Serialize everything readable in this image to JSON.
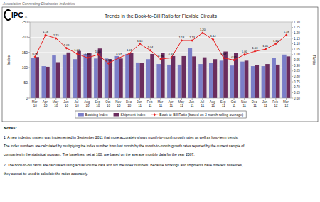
{
  "chart_data": {
    "type": "bar",
    "title": "Trends in the Book-to-Bill Ratio for Flexible Circuits",
    "ylabel": "Index",
    "y2label": "Ratio",
    "annotations": [
      "Association Connecting Electronics Industries",
      "IPC",
      "®",
      "Notes:",
      "1.  A new indexing system was implemented in September 2011 that more accurately shows month-to-month growth rates as well as long-term trends.",
      "The index numbers are calculated by multiplying the index number from last month by the month-to-month growth rates reported by the current sample of",
      "companies in the statistical program.  The baselines, set at 100, are based on the average monthly data for the year 2007.",
      "2.  The book-to-bill ratios are calculated using actual volume data and not the index numbers.  Because bookings and shipments have different baselines,",
      "they cannot be used to calculate the ratios accurately."
    ],
    "categories": [
      "Mar-\n10",
      "Apr-\n10",
      "May-\n10",
      "Jun-\n10",
      "Jul-\n10",
      "Aug-\n10",
      "Sep-\n10",
      "Oct-\n10",
      "Nov-\n10",
      "Dec-\n10",
      "Jan-\n11",
      "Feb-\n11",
      "Mar-\n11",
      "Apr-\n11",
      "May-\n11",
      "Jun-\n11",
      "Jul-\n11",
      "Aug-\n11",
      "Sep-\n11",
      "Oct-\n11",
      "Nov-\n11",
      "Dec-\n11",
      "Jan-\n12",
      "Feb-\n12",
      "Mar-\n12"
    ],
    "series": [
      {
        "name": "Booking Index",
        "color": "#7B7EC8",
        "values": [
          133,
          105,
          140,
          143,
          128,
          145,
          130,
          130,
          138,
          145,
          117,
          128,
          112,
          110,
          110,
          165,
          112,
          115,
          123,
          107,
          120,
          105,
          105,
          133,
          143
        ]
      },
      {
        "name": "Shipment Index",
        "color": "#6B2D5E",
        "values": [
          135,
          103,
          118,
          150,
          155,
          147,
          163,
          128,
          130,
          148,
          115,
          145,
          148,
          138,
          138,
          137,
          134,
          128,
          153,
          148,
          123,
          108,
          112,
          110,
          137
        ]
      },
      {
        "name": "Book-to-Bill Ratio (based on 3-month rolling average)",
        "type": "line",
        "axis": "y2",
        "color": "#E82020",
        "marker": "diamond",
        "data_labels": true,
        "values": [
          0.98,
          1.18,
          1.15,
          1.06,
          1.01,
          0.97,
          1.0,
          0.92,
          0.97,
          1.01,
          1.1,
          1.04,
          0.96,
          0.97,
          1.13,
          1.13,
          1.2,
          1.14,
          0.97,
          0.95,
          1.0,
          1.03,
          1.05,
          1.1,
          1.18
        ],
        "value_labels": [
          "0.98",
          "1.18",
          "1.15",
          "1.06",
          "1.01",
          "0.97",
          "1.00",
          "0.92",
          "0.97",
          "1.01",
          "1.10",
          "1.04",
          "0.96",
          "0.97",
          "1.13",
          "1.13",
          "1.20",
          "1.14",
          "0.97",
          "0.95",
          "1.00",
          "1.03",
          "1.05",
          "1.10",
          "1.18"
        ]
      }
    ],
    "ylim": [
      0,
      250
    ],
    "yticks": [
      0,
      50,
      100,
      150,
      200,
      250
    ],
    "y2lim": [
      0.6,
      1.3
    ],
    "y2ticks": [
      {
        "value": 0.6,
        "label": "0.60"
      },
      {
        "value": 0.65,
        "label": "0.65"
      },
      {
        "value": 0.7,
        "label": "0.70"
      },
      {
        "value": 0.75,
        "label": "0.75"
      },
      {
        "value": 0.8,
        "label": "0.80"
      },
      {
        "value": 0.85,
        "label": "0.85"
      },
      {
        "value": 0.9,
        "label": "0.90"
      },
      {
        "value": 0.95,
        "label": "0.95"
      },
      {
        "value": 1.0,
        "label": "1.00"
      },
      {
        "value": 1.05,
        "label": "1.05"
      },
      {
        "value": 1.1,
        "label": "1.10"
      },
      {
        "value": 1.15,
        "label": "1.15"
      },
      {
        "value": 1.2,
        "label": "1.20"
      },
      {
        "value": 1.25,
        "label": "1.25"
      },
      {
        "value": 1.3,
        "label": "1.30"
      }
    ],
    "grid": true,
    "legend": "bottom"
  }
}
